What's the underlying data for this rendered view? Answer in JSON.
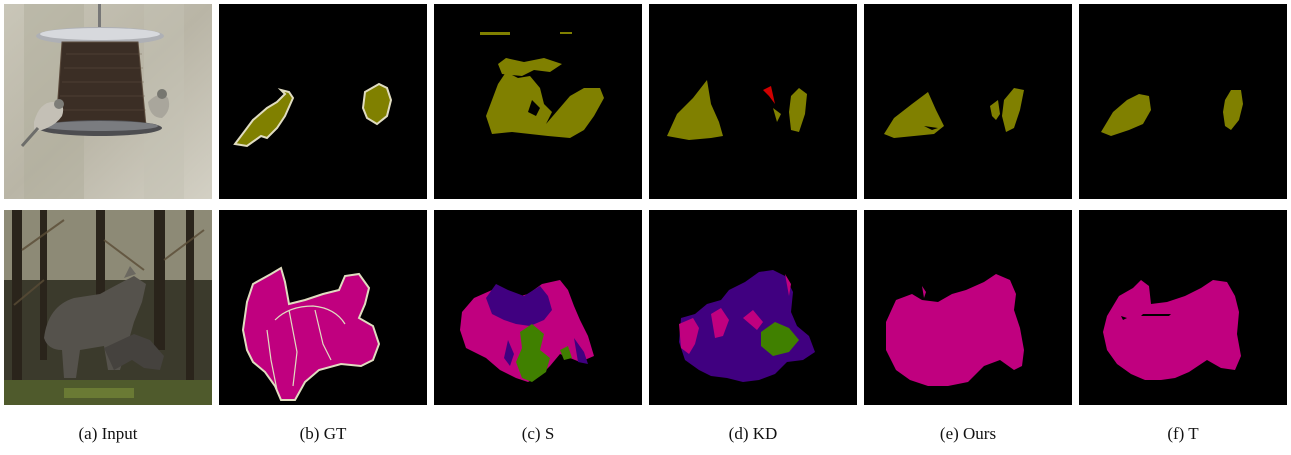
{
  "figure": {
    "captions": [
      "(a) Input",
      "(b) GT",
      "(c) S",
      "(d) KD",
      "(e) Ours",
      "(f) T"
    ]
  },
  "colors": {
    "bird": "#808000",
    "horse": "#c0007f",
    "cow": "#400080",
    "sheep": "#408000",
    "error_red": "#d00000",
    "boundary": "#e0dcc0",
    "background": "#000000"
  }
}
